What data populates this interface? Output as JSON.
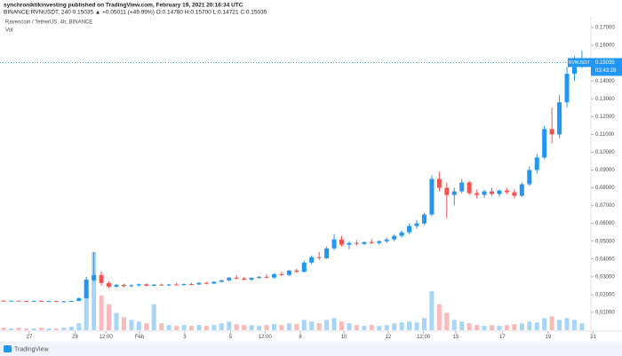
{
  "header": {
    "publisher": "synchroniktikinvesting published on TradingView.com, February 19, 2021 20:16:34 UTC",
    "symbol_line": "BINANCE:RVNUSDT, 240  0.15035 ▲ +0.05011 (+49.99%)  O:0.14780  H:0.15700  L:0.14721  C:0.15035"
  },
  "footer": {
    "brand": "TradingView"
  },
  "chart_data": {
    "type": "candlestick",
    "title": "Ravencoin / TetherUS, 4h, BINANCE",
    "volume_label": "Vol",
    "symbol": "RVNUSDT",
    "countdown": "03:43:28",
    "up_color": "#2196f3",
    "down_color": "#ef5350",
    "grid": false,
    "ylim": [
      0,
      0.175
    ],
    "yticks": [
      {
        "value": 0.01,
        "label": "0.01000"
      },
      {
        "value": 0.02,
        "label": "0.02000"
      },
      {
        "value": 0.03,
        "label": "0.03000"
      },
      {
        "value": 0.04,
        "label": "0.04000"
      },
      {
        "value": 0.05,
        "label": "0.05000"
      },
      {
        "value": 0.06,
        "label": "0.06000"
      },
      {
        "value": 0.07,
        "label": "0.07000"
      },
      {
        "value": 0.08,
        "label": "0.08000"
      },
      {
        "value": 0.09,
        "label": "0.09000"
      },
      {
        "value": 0.1,
        "label": "0.10000"
      },
      {
        "value": 0.11,
        "label": "0.11000"
      },
      {
        "value": 0.12,
        "label": "0.12000"
      },
      {
        "value": 0.13,
        "label": "0.13000"
      },
      {
        "value": 0.14,
        "label": "0.14000"
      },
      {
        "value": 0.15,
        "label": "0.15000"
      },
      {
        "value": 0.16,
        "label": "0.16000"
      },
      {
        "value": 0.17,
        "label": "0.17000"
      }
    ],
    "xlim": [
      -0.5,
      77.6
    ],
    "xticks": [
      {
        "value": 3.4,
        "label": "27"
      },
      {
        "value": 9.5,
        "label": "29"
      },
      {
        "value": 13.6,
        "label": "12:00"
      },
      {
        "value": 18.1,
        "label": "Feb"
      },
      {
        "value": 24.1,
        "label": "3"
      },
      {
        "value": 30.2,
        "label": "5"
      },
      {
        "value": 34.8,
        "label": "12:00"
      },
      {
        "value": 39.5,
        "label": "8"
      },
      {
        "value": 45.3,
        "label": "10"
      },
      {
        "value": 51.2,
        "label": "12"
      },
      {
        "value": 55.9,
        "label": "12:00"
      },
      {
        "value": 60.2,
        "label": "15"
      },
      {
        "value": 66.4,
        "label": "17"
      },
      {
        "value": 72.5,
        "label": "19"
      },
      {
        "value": 78.5,
        "label": "21"
      }
    ],
    "ohlc": [
      [
        0.0166,
        0.0169,
        0.0164,
        0.0165
      ],
      [
        0.0165,
        0.0168,
        0.0163,
        0.0166
      ],
      [
        0.0166,
        0.0167,
        0.0162,
        0.0164
      ],
      [
        0.0164,
        0.0167,
        0.0161,
        0.0163
      ],
      [
        0.0163,
        0.0166,
        0.016,
        0.0165
      ],
      [
        0.0165,
        0.0167,
        0.0162,
        0.0163
      ],
      [
        0.0163,
        0.0166,
        0.0161,
        0.0164
      ],
      [
        0.0164,
        0.0166,
        0.0158,
        0.016
      ],
      [
        0.016,
        0.0164,
        0.0157,
        0.0162
      ],
      [
        0.0162,
        0.0166,
        0.016,
        0.0165
      ],
      [
        0.0165,
        0.0185,
        0.0163,
        0.018
      ],
      [
        0.018,
        0.03,
        0.0178,
        0.0285
      ],
      [
        0.028,
        0.044,
        0.0275,
        0.031
      ],
      [
        0.031,
        0.033,
        0.025,
        0.0265
      ],
      [
        0.0265,
        0.0275,
        0.0235,
        0.0245
      ],
      [
        0.0245,
        0.026,
        0.0238,
        0.0255
      ],
      [
        0.0255,
        0.0262,
        0.024,
        0.0248
      ],
      [
        0.0248,
        0.0258,
        0.0242,
        0.0252
      ],
      [
        0.0252,
        0.0262,
        0.0245,
        0.0258
      ],
      [
        0.0258,
        0.0263,
        0.0248,
        0.025
      ],
      [
        0.025,
        0.026,
        0.0246,
        0.0256
      ],
      [
        0.0256,
        0.0262,
        0.025,
        0.0253
      ],
      [
        0.0253,
        0.026,
        0.0248,
        0.0257
      ],
      [
        0.0257,
        0.0265,
        0.0252,
        0.0255
      ],
      [
        0.0255,
        0.0262,
        0.025,
        0.0259
      ],
      [
        0.0259,
        0.0266,
        0.0254,
        0.0257
      ],
      [
        0.0257,
        0.027,
        0.0255,
        0.0266
      ],
      [
        0.0266,
        0.0272,
        0.0258,
        0.0262
      ],
      [
        0.0262,
        0.0275,
        0.026,
        0.0272
      ],
      [
        0.0272,
        0.0285,
        0.0268,
        0.028
      ],
      [
        0.028,
        0.03,
        0.0276,
        0.0295
      ],
      [
        0.0295,
        0.031,
        0.0285,
        0.029
      ],
      [
        0.029,
        0.03,
        0.028,
        0.0284
      ],
      [
        0.0284,
        0.0298,
        0.0278,
        0.0294
      ],
      [
        0.0294,
        0.0305,
        0.0288,
        0.03
      ],
      [
        0.03,
        0.0315,
        0.0292,
        0.0296
      ],
      [
        0.0296,
        0.032,
        0.029,
        0.0315
      ],
      [
        0.0315,
        0.033,
        0.0305,
        0.031
      ],
      [
        0.031,
        0.034,
        0.0305,
        0.0335
      ],
      [
        0.0335,
        0.0345,
        0.032,
        0.0328
      ],
      [
        0.0328,
        0.039,
        0.0325,
        0.038
      ],
      [
        0.038,
        0.042,
        0.037,
        0.041
      ],
      [
        0.041,
        0.044,
        0.0395,
        0.0405
      ],
      [
        0.0405,
        0.047,
        0.04,
        0.046
      ],
      [
        0.046,
        0.054,
        0.045,
        0.051
      ],
      [
        0.051,
        0.053,
        0.047,
        0.048
      ],
      [
        0.048,
        0.05,
        0.0455,
        0.049
      ],
      [
        0.049,
        0.0505,
        0.0475,
        0.0485
      ],
      [
        0.0485,
        0.05,
        0.0478,
        0.0495
      ],
      [
        0.0495,
        0.051,
        0.0485,
        0.049
      ],
      [
        0.049,
        0.0505,
        0.048,
        0.05
      ],
      [
        0.05,
        0.052,
        0.049,
        0.051
      ],
      [
        0.051,
        0.054,
        0.05,
        0.053
      ],
      [
        0.053,
        0.056,
        0.052,
        0.055
      ],
      [
        0.055,
        0.06,
        0.054,
        0.0585
      ],
      [
        0.0585,
        0.062,
        0.057,
        0.06
      ],
      [
        0.06,
        0.066,
        0.059,
        0.065
      ],
      [
        0.065,
        0.087,
        0.064,
        0.085
      ],
      [
        0.085,
        0.089,
        0.078,
        0.08
      ],
      [
        0.08,
        0.083,
        0.063,
        0.076
      ],
      [
        0.076,
        0.08,
        0.07,
        0.078
      ],
      [
        0.078,
        0.085,
        0.077,
        0.083
      ],
      [
        0.083,
        0.084,
        0.076,
        0.077
      ],
      [
        0.077,
        0.079,
        0.074,
        0.076
      ],
      [
        0.076,
        0.079,
        0.0745,
        0.078
      ],
      [
        0.078,
        0.08,
        0.0755,
        0.0765
      ],
      [
        0.0765,
        0.079,
        0.075,
        0.0785
      ],
      [
        0.0785,
        0.08,
        0.0765,
        0.0775
      ],
      [
        0.0775,
        0.079,
        0.074,
        0.0755
      ],
      [
        0.0755,
        0.083,
        0.075,
        0.082
      ],
      [
        0.082,
        0.092,
        0.081,
        0.09
      ],
      [
        0.09,
        0.099,
        0.088,
        0.097
      ],
      [
        0.097,
        0.115,
        0.096,
        0.113
      ],
      [
        0.113,
        0.125,
        0.105,
        0.11
      ],
      [
        0.11,
        0.132,
        0.108,
        0.128
      ],
      [
        0.128,
        0.148,
        0.125,
        0.144
      ],
      [
        0.144,
        0.154,
        0.14,
        0.1478
      ],
      [
        0.1478,
        0.157,
        0.14721,
        0.15035
      ]
    ],
    "volume": [
      3,
      2,
      3,
      2,
      2,
      3,
      2,
      2,
      3,
      4,
      8,
      45,
      90,
      40,
      30,
      20,
      15,
      12,
      10,
      8,
      30,
      8,
      6,
      5,
      6,
      5,
      6,
      5,
      6,
      8,
      10,
      7,
      6,
      6,
      5,
      6,
      7,
      6,
      8,
      7,
      12,
      10,
      8,
      12,
      14,
      10,
      8,
      6,
      5,
      6,
      5,
      6,
      8,
      9,
      10,
      9,
      14,
      45,
      30,
      20,
      12,
      10,
      8,
      6,
      5,
      6,
      5,
      6,
      7,
      8,
      10,
      9,
      14,
      16,
      12,
      14,
      12,
      8
    ]
  }
}
